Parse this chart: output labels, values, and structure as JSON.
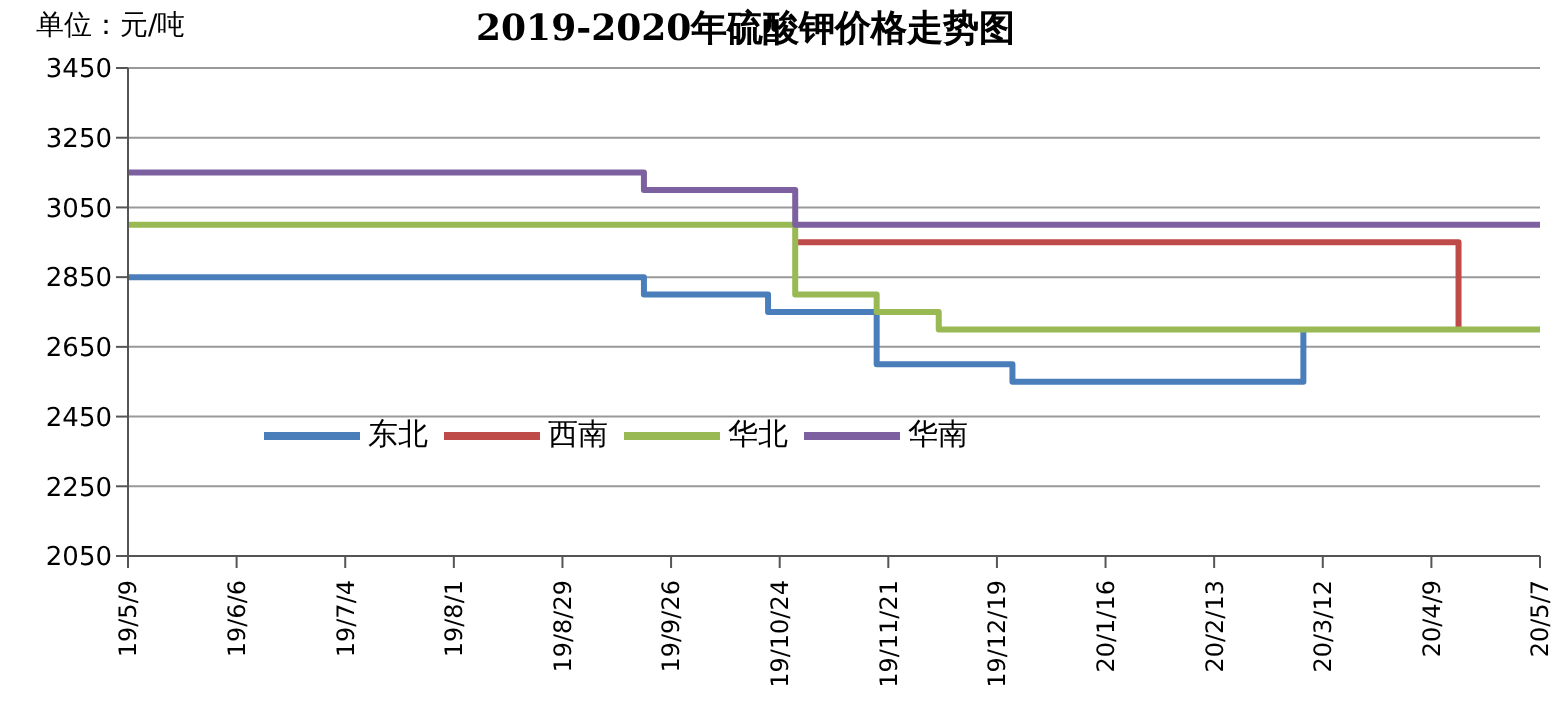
{
  "chart_data": {
    "type": "step",
    "title": "2019-2020年硫酸钾价格走势图",
    "ylabel": "单位：元/吨",
    "xlim": [
      "2019-05-09",
      "2020-05-07"
    ],
    "xticks": [
      {
        "value": "2019-05-09",
        "label": "19/5/9"
      },
      {
        "value": "2019-06-06",
        "label": "19/6/6"
      },
      {
        "value": "2019-07-04",
        "label": "19/7/4"
      },
      {
        "value": "2019-08-01",
        "label": "19/8/1"
      },
      {
        "value": "2019-08-29",
        "label": "19/8/29"
      },
      {
        "value": "2019-09-26",
        "label": "19/9/26"
      },
      {
        "value": "2019-10-24",
        "label": "19/10/24"
      },
      {
        "value": "2019-11-21",
        "label": "19/11/21"
      },
      {
        "value": "2019-12-19",
        "label": "19/12/19"
      },
      {
        "value": "2020-01-16",
        "label": "20/1/16"
      },
      {
        "value": "2020-02-13",
        "label": "20/2/13"
      },
      {
        "value": "2020-03-12",
        "label": "20/3/12"
      },
      {
        "value": "2020-04-09",
        "label": "20/4/9"
      },
      {
        "value": "2020-05-07",
        "label": "20/5/7"
      }
    ],
    "ylim": [
      2050,
      3450
    ],
    "yticks": [
      2050,
      2250,
      2450,
      2650,
      2850,
      3050,
      3250,
      3450
    ],
    "grid": "y",
    "legend": "bottom left",
    "marker": "none",
    "line_style": "solid",
    "series": [
      {
        "name": "东北",
        "color": "#4a7ebb",
        "x": [
          "2019-05-09",
          "2019-09-19",
          "2019-10-21",
          "2019-11-18",
          "2019-12-23",
          "2020-03-07"
        ],
        "values": [
          2850,
          2800,
          2750,
          2600,
          2550,
          2700
        ]
      },
      {
        "name": "西南",
        "color": "#be4b48",
        "x": [
          "2019-10-28",
          "2020-04-16"
        ],
        "values": [
          2950,
          2700
        ]
      },
      {
        "name": "华北",
        "color": "#98b954",
        "x": [
          "2019-05-09",
          "2019-10-28",
          "2019-11-18",
          "2019-12-04",
          "2020-05-07"
        ],
        "values": [
          3000,
          2800,
          2750,
          2700,
          2700
        ]
      },
      {
        "name": "华南",
        "color": "#7d60a0",
        "x": [
          "2019-05-09",
          "2019-09-19",
          "2019-10-28",
          "2020-05-07"
        ],
        "values": [
          3150,
          3100,
          3000,
          3000
        ]
      }
    ]
  }
}
